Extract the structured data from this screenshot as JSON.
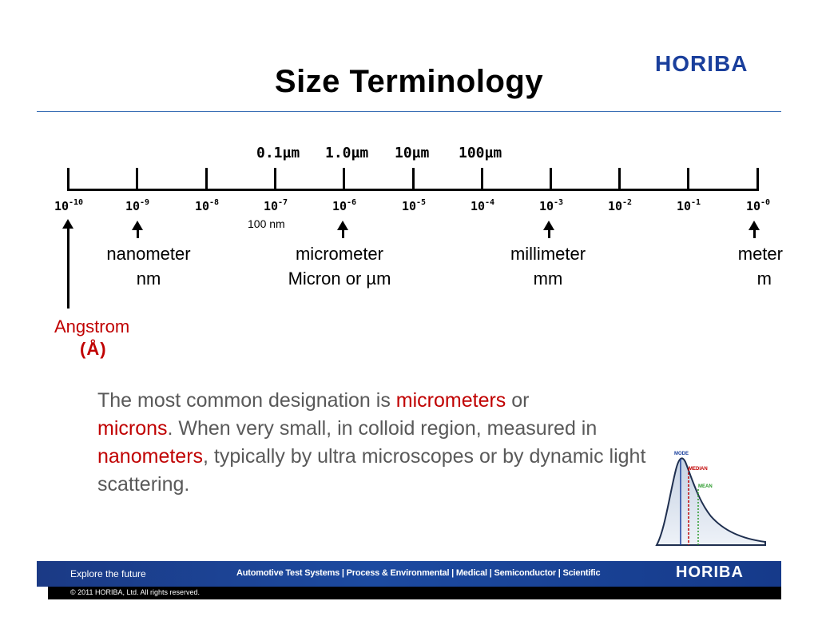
{
  "header": {
    "title": "Size Terminology",
    "logo": "HORIBA"
  },
  "scale": {
    "unit_marks": [
      "0.1µm",
      "1.0µm",
      "10µm",
      "100µm"
    ],
    "exponents": [
      {
        "base": "10",
        "exp": "-10"
      },
      {
        "base": "10",
        "exp": "-9"
      },
      {
        "base": "10",
        "exp": "-8"
      },
      {
        "base": "10",
        "exp": "-7"
      },
      {
        "base": "10",
        "exp": "-6"
      },
      {
        "base": "10",
        "exp": "-5"
      },
      {
        "base": "10",
        "exp": "-4"
      },
      {
        "base": "10",
        "exp": "-3"
      },
      {
        "base": "10",
        "exp": "-2"
      },
      {
        "base": "10",
        "exp": "-1"
      },
      {
        "base": "10",
        "exp": "-0"
      }
    ],
    "note_100nm": "100 nm"
  },
  "labels": {
    "nanometer": {
      "line1": "nanometer",
      "line2": "nm"
    },
    "micrometer": {
      "line1": "micrometer",
      "line2": "Micron or µm"
    },
    "millimeter": {
      "line1": "millimeter",
      "line2": "mm"
    },
    "meter": {
      "line1": "meter",
      "line2": "m"
    },
    "angstrom": {
      "line1": "Angstrom",
      "line2": "(Å)"
    }
  },
  "description": {
    "part1": "The most common designation is ",
    "red1": "micrometers",
    "part2": " or ",
    "red2": "microns",
    "part3": ". When very small, in colloid region, measured in ",
    "red3": "nanometers",
    "part4": ", typically by ultra microscopes or by dynamic light scattering."
  },
  "distribution": {
    "labels": [
      "MODE",
      "MEDIAN",
      "MEAN"
    ]
  },
  "footer": {
    "tagline": "Explore the future",
    "sectors": "Automotive Test Systems  |  Process & Environmental  |  Medical  |  Semiconductor  |  Scientific",
    "logo": "HORIBA",
    "copyright": "© 2011 HORIBA, Ltd. All rights reserved."
  },
  "colors": {
    "accent_red": "#c00000",
    "brand_blue": "#1a3f9c",
    "body_gray": "#595959"
  }
}
